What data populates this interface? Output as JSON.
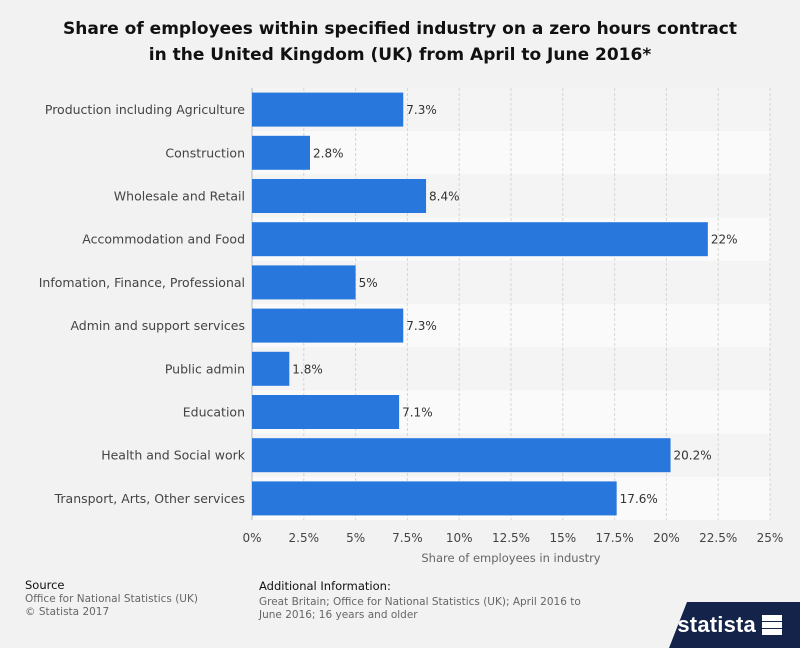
{
  "title": {
    "line1": "Share of employees within specified industry on a zero hours contract",
    "line2": "in the United Kingdom (UK) from April to June 2016*"
  },
  "chart_data": {
    "type": "bar",
    "orientation": "horizontal",
    "categories": [
      "Production including Agriculture",
      "Construction",
      "Wholesale and Retail",
      "Accommodation and Food",
      "Infomation, Finance, Professional",
      "Admin and support services",
      "Public admin",
      "Education",
      "Health and Social work",
      "Transport, Arts, Other services"
    ],
    "values": [
      7.3,
      2.8,
      8.4,
      22,
      5,
      7.3,
      1.8,
      7.1,
      20.2,
      17.6
    ],
    "value_labels": [
      "7.3%",
      "2.8%",
      "8.4%",
      "22%",
      "5%",
      "7.3%",
      "1.8%",
      "7.1%",
      "20.2%",
      "17.6%"
    ],
    "xlabel": "Share of employees in industry",
    "xlim": [
      0,
      25
    ],
    "xticks": [
      0,
      2.5,
      5,
      7.5,
      10,
      12.5,
      15,
      17.5,
      20,
      22.5,
      25
    ],
    "xtick_labels": [
      "0%",
      "2.5%",
      "5%",
      "7.5%",
      "10%",
      "12.5%",
      "15%",
      "17.5%",
      "20%",
      "22.5%",
      "25%"
    ],
    "bar_color": "#2877dd",
    "grid": true
  },
  "footer": {
    "source_heading": "Source",
    "source_lines": [
      "Office for National Statistics (UK)",
      "© Statista 2017"
    ],
    "info_heading": "Additional Information:",
    "info_text": "Great Britain; Office for National Statistics (UK); April 2016 to June 2016; 16 years and older",
    "logo_text": "statista"
  }
}
